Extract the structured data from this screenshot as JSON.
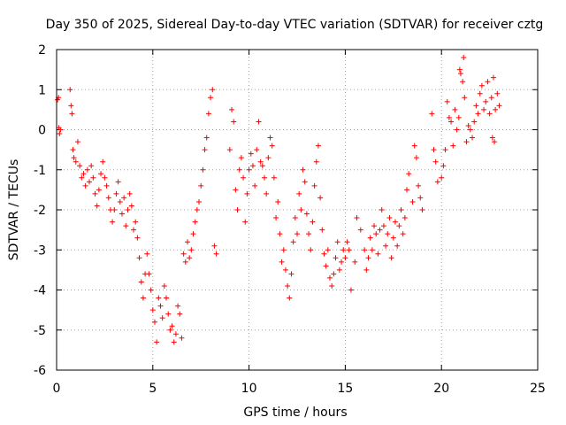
{
  "chart_data": {
    "type": "scatter",
    "title": "Day 350 of 2025, Sidereal Day-to-day VTEC variation (SDTVAR) for receiver cztg",
    "xlabel": "GPS time / hours",
    "ylabel": "SDTVAR / TECUs",
    "xlim": [
      0,
      25
    ],
    "ylim": [
      -6,
      2
    ],
    "x_ticks": [
      0,
      5,
      10,
      15,
      20,
      25
    ],
    "y_ticks": [
      -6,
      -5,
      -4,
      -3,
      -2,
      -1,
      0,
      1,
      2
    ],
    "x_tick_labels": [
      "0",
      "5",
      "10",
      "15",
      "20",
      "25"
    ],
    "y_tick_labels": [
      "-6",
      "-5",
      "-4",
      "-3",
      "-2",
      "-1",
      "0",
      "1",
      "2"
    ],
    "grid": true,
    "marker": "plus",
    "color": "#ff0000",
    "series": [
      {
        "name": "SDTVAR",
        "points": [
          [
            0.05,
            0.75
          ],
          [
            0.1,
            0.8
          ],
          [
            0.12,
            0.05
          ],
          [
            0.15,
            -0.1
          ],
          [
            0.2,
            0.0
          ],
          [
            0.7,
            1.0
          ],
          [
            0.75,
            0.6
          ],
          [
            0.8,
            0.4
          ],
          [
            0.85,
            -0.5
          ],
          [
            0.9,
            -0.7
          ],
          [
            1.0,
            -0.8
          ],
          [
            1.1,
            -0.3
          ],
          [
            1.2,
            -0.9
          ],
          [
            1.3,
            -1.2
          ],
          [
            1.4,
            -1.1
          ],
          [
            1.5,
            -1.4
          ],
          [
            1.6,
            -1.0
          ],
          [
            1.7,
            -1.3
          ],
          [
            1.8,
            -0.9
          ],
          [
            1.9,
            -1.2
          ],
          [
            2.0,
            -1.6
          ],
          [
            2.1,
            -1.9
          ],
          [
            2.2,
            -1.5
          ],
          [
            2.3,
            -1.1
          ],
          [
            2.4,
            -0.8
          ],
          [
            2.5,
            -1.2
          ],
          [
            2.6,
            -1.4
          ],
          [
            2.7,
            -1.7
          ],
          [
            2.8,
            -2.0
          ],
          [
            2.9,
            -2.3
          ],
          [
            3.0,
            -2.0
          ],
          [
            3.1,
            -1.6
          ],
          [
            3.2,
            -1.3
          ],
          [
            3.3,
            -1.8
          ],
          [
            3.4,
            -2.1
          ],
          [
            3.5,
            -1.7
          ],
          [
            3.6,
            -2.4
          ],
          [
            3.7,
            -2.0
          ],
          [
            3.8,
            -1.6
          ],
          [
            3.9,
            -1.9
          ],
          [
            4.0,
            -2.5
          ],
          [
            4.1,
            -2.3
          ],
          [
            4.2,
            -2.7
          ],
          [
            4.3,
            -3.2
          ],
          [
            4.4,
            -3.8
          ],
          [
            4.5,
            -4.2
          ],
          [
            4.6,
            -3.6
          ],
          [
            4.7,
            -3.1
          ],
          [
            4.8,
            -3.6
          ],
          [
            4.9,
            -4.0
          ],
          [
            5.0,
            -4.5
          ],
          [
            5.1,
            -4.8
          ],
          [
            5.2,
            -5.3
          ],
          [
            5.3,
            -4.2
          ],
          [
            5.4,
            -4.4
          ],
          [
            5.5,
            -4.7
          ],
          [
            5.6,
            -3.9
          ],
          [
            5.7,
            -4.2
          ],
          [
            5.8,
            -4.6
          ],
          [
            5.9,
            -5.0
          ],
          [
            6.0,
            -4.9
          ],
          [
            6.1,
            -5.3
          ],
          [
            6.2,
            -5.1
          ],
          [
            6.3,
            -4.4
          ],
          [
            6.4,
            -4.6
          ],
          [
            6.5,
            -5.2
          ],
          [
            6.6,
            -3.1
          ],
          [
            6.7,
            -3.3
          ],
          [
            6.8,
            -2.8
          ],
          [
            6.9,
            -3.2
          ],
          [
            7.0,
            -3.0
          ],
          [
            7.1,
            -2.6
          ],
          [
            7.2,
            -2.3
          ],
          [
            7.3,
            -2.0
          ],
          [
            7.4,
            -1.8
          ],
          [
            7.5,
            -1.4
          ],
          [
            7.6,
            -1.0
          ],
          [
            7.7,
            -0.5
          ],
          [
            7.8,
            -0.2
          ],
          [
            7.9,
            0.4
          ],
          [
            8.0,
            0.8
          ],
          [
            8.1,
            1.0
          ],
          [
            8.2,
            -2.9
          ],
          [
            8.3,
            -3.1
          ],
          [
            9.0,
            -0.5
          ],
          [
            9.1,
            0.5
          ],
          [
            9.2,
            0.2
          ],
          [
            9.3,
            -1.5
          ],
          [
            9.4,
            -2.0
          ],
          [
            9.5,
            -1.0
          ],
          [
            9.6,
            -0.7
          ],
          [
            9.7,
            -1.2
          ],
          [
            9.8,
            -2.3
          ],
          [
            9.9,
            -1.6
          ],
          [
            10.0,
            -1.0
          ],
          [
            10.1,
            -0.6
          ],
          [
            10.2,
            -0.9
          ],
          [
            10.3,
            -1.4
          ],
          [
            10.4,
            -0.5
          ],
          [
            10.5,
            0.2
          ],
          [
            10.6,
            -0.8
          ],
          [
            10.7,
            -0.9
          ],
          [
            10.8,
            -1.2
          ],
          [
            10.9,
            -1.6
          ],
          [
            11.0,
            -0.7
          ],
          [
            11.1,
            -0.2
          ],
          [
            11.2,
            -0.4
          ],
          [
            11.3,
            -1.2
          ],
          [
            11.4,
            -2.2
          ],
          [
            11.5,
            -1.8
          ],
          [
            11.6,
            -2.6
          ],
          [
            11.7,
            -3.3
          ],
          [
            11.8,
            -3.0
          ],
          [
            11.9,
            -3.5
          ],
          [
            12.0,
            -3.9
          ],
          [
            12.1,
            -4.2
          ],
          [
            12.2,
            -3.6
          ],
          [
            12.3,
            -2.8
          ],
          [
            12.4,
            -2.2
          ],
          [
            12.5,
            -2.6
          ],
          [
            12.6,
            -1.6
          ],
          [
            12.7,
            -2.0
          ],
          [
            12.8,
            -1.0
          ],
          [
            12.9,
            -1.3
          ],
          [
            13.0,
            -2.1
          ],
          [
            13.1,
            -2.6
          ],
          [
            13.2,
            -3.0
          ],
          [
            13.3,
            -2.3
          ],
          [
            13.4,
            -1.4
          ],
          [
            13.5,
            -0.8
          ],
          [
            13.6,
            -0.4
          ],
          [
            13.7,
            -1.7
          ],
          [
            13.8,
            -2.5
          ],
          [
            13.9,
            -3.1
          ],
          [
            14.0,
            -3.4
          ],
          [
            14.1,
            -3.0
          ],
          [
            14.2,
            -3.7
          ],
          [
            14.3,
            -3.9
          ],
          [
            14.4,
            -3.6
          ],
          [
            14.5,
            -3.2
          ],
          [
            14.6,
            -2.8
          ],
          [
            14.7,
            -3.5
          ],
          [
            14.8,
            -3.3
          ],
          [
            14.9,
            -3.0
          ],
          [
            15.0,
            -3.2
          ],
          [
            15.1,
            -2.8
          ],
          [
            15.2,
            -3.0
          ],
          [
            15.3,
            -4.0
          ],
          [
            15.5,
            -3.3
          ],
          [
            15.6,
            -2.2
          ],
          [
            15.8,
            -2.5
          ],
          [
            16.0,
            -3.0
          ],
          [
            16.1,
            -3.5
          ],
          [
            16.2,
            -3.2
          ],
          [
            16.3,
            -2.7
          ],
          [
            16.4,
            -3.0
          ],
          [
            16.5,
            -2.4
          ],
          [
            16.6,
            -2.6
          ],
          [
            16.7,
            -3.1
          ],
          [
            16.8,
            -2.5
          ],
          [
            16.9,
            -2.0
          ],
          [
            17.0,
            -2.4
          ],
          [
            17.1,
            -2.9
          ],
          [
            17.2,
            -2.6
          ],
          [
            17.3,
            -2.2
          ],
          [
            17.4,
            -3.2
          ],
          [
            17.5,
            -2.7
          ],
          [
            17.6,
            -2.3
          ],
          [
            17.7,
            -2.9
          ],
          [
            17.8,
            -2.4
          ],
          [
            17.9,
            -2.0
          ],
          [
            18.0,
            -2.6
          ],
          [
            18.1,
            -2.2
          ],
          [
            18.2,
            -1.5
          ],
          [
            18.3,
            -1.1
          ],
          [
            18.5,
            -1.8
          ],
          [
            18.6,
            -0.4
          ],
          [
            18.7,
            -0.7
          ],
          [
            18.8,
            -1.4
          ],
          [
            18.9,
            -1.7
          ],
          [
            19.0,
            -2.0
          ],
          [
            19.5,
            0.4
          ],
          [
            19.6,
            -0.5
          ],
          [
            19.7,
            -0.8
          ],
          [
            19.8,
            -1.3
          ],
          [
            20.0,
            -1.2
          ],
          [
            20.1,
            -0.9
          ],
          [
            20.2,
            -0.5
          ],
          [
            20.3,
            0.7
          ],
          [
            20.4,
            0.3
          ],
          [
            20.5,
            0.2
          ],
          [
            20.6,
            -0.4
          ],
          [
            20.7,
            0.5
          ],
          [
            20.8,
            0.0
          ],
          [
            20.9,
            0.3
          ],
          [
            21.0,
            1.4
          ],
          [
            21.1,
            1.2
          ],
          [
            21.2,
            0.8
          ],
          [
            21.3,
            -0.3
          ],
          [
            21.4,
            0.1
          ],
          [
            21.5,
            0.0
          ],
          [
            21.6,
            -0.2
          ],
          [
            21.7,
            0.2
          ],
          [
            21.8,
            0.6
          ],
          [
            21.9,
            0.4
          ],
          [
            22.0,
            0.9
          ],
          [
            22.1,
            1.1
          ],
          [
            22.2,
            0.5
          ],
          [
            22.3,
            0.7
          ],
          [
            22.4,
            1.2
          ],
          [
            22.5,
            0.4
          ],
          [
            22.6,
            0.8
          ],
          [
            22.7,
            1.3
          ],
          [
            22.8,
            0.5
          ],
          [
            22.9,
            0.9
          ],
          [
            23.0,
            0.6
          ],
          [
            22.65,
            -0.2
          ],
          [
            22.75,
            -0.3
          ],
          [
            21.15,
            1.8
          ],
          [
            20.95,
            1.5
          ]
        ]
      }
    ]
  }
}
